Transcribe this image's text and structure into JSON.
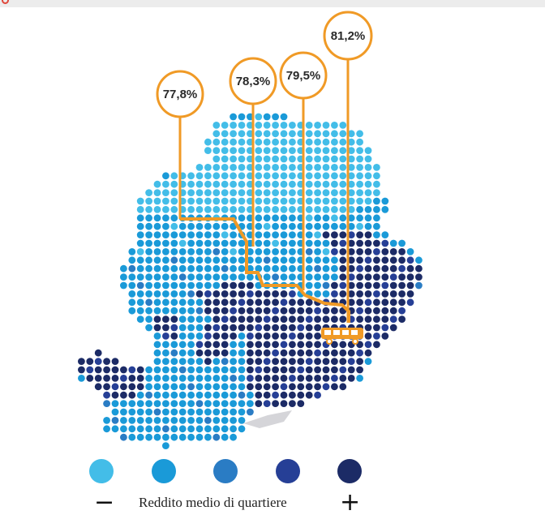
{
  "callouts": [
    {
      "label": "77,8%"
    },
    {
      "label": "78,3%"
    },
    {
      "label": "79,5%"
    },
    {
      "label": "81,2%"
    }
  ],
  "legend": {
    "label": "Reddito medio di quartiere",
    "minus": "−",
    "plus": "+",
    "colors": [
      "#43bde8",
      "#1a9ad8",
      "#2a7cc4",
      "#263f96",
      "#1c2b66"
    ]
  },
  "colors": {
    "line": "#f09a26",
    "shadow": "#b9b9c0"
  },
  "icons": [
    "tram-icon"
  ]
}
